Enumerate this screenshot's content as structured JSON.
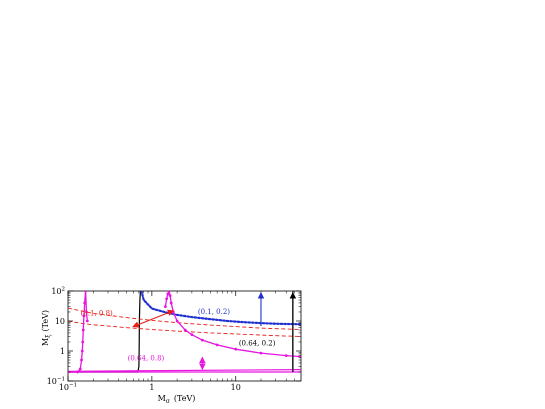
{
  "chart_data": {
    "type": "line",
    "xlabel": "M_σ (TeV)",
    "xlabel_main": "M",
    "xlabel_sub": "σ",
    "xlabel_unit": "(TeV)",
    "ylabel": "M_ξ (TeV)",
    "ylabel_main": "M",
    "ylabel_sub": "ξ",
    "ylabel_unit": "(TeV)",
    "x_scale": "log",
    "y_scale": "log",
    "xlim": [
      0.1,
      60
    ],
    "ylim": [
      0.1,
      100
    ],
    "x_ticks": [
      {
        "value": 0.1,
        "base": "10",
        "exp": "−1"
      },
      {
        "value": 1,
        "label": "1"
      },
      {
        "value": 10,
        "label": "10"
      }
    ],
    "y_ticks": [
      {
        "value": 0.1,
        "base": "10",
        "exp": "−1"
      },
      {
        "value": 1,
        "label": "1"
      },
      {
        "value": 10,
        "label": "10"
      },
      {
        "value": 100,
        "base": "10",
        "exp": "2"
      }
    ],
    "grid": false,
    "colors": {
      "black": "#000000",
      "red": "#e8201a",
      "blue": "#1f2fd0",
      "magenta": "#e815e0"
    },
    "series": [
      {
        "color": "#000000",
        "style": "solid",
        "x": [
          0.1,
          0.6,
          0.68,
          0.7,
          0.705,
          0.71,
          0.72,
          0.73
        ],
        "y": [
          0.2,
          0.2,
          0.2,
          0.3,
          1,
          10,
          50,
          100
        ]
      },
      {
        "color": "#000000",
        "style": "solid",
        "x": [
          48,
          48
        ],
        "y": [
          0.2,
          100
        ]
      },
      {
        "color": "#1f2fd0",
        "style": "dotted",
        "x": [
          0.75,
          0.8,
          1,
          1.5,
          2,
          3,
          5,
          8,
          12,
          20,
          30,
          45,
          60
        ],
        "y": [
          100,
          50,
          26,
          19,
          16,
          13.5,
          11.5,
          10,
          9.2,
          8.5,
          8.1,
          7.9,
          7.8
        ]
      },
      {
        "color": "#e8201a",
        "style": "dashed",
        "x": [
          0.1,
          0.15,
          0.2,
          0.3,
          0.5,
          1,
          2,
          5,
          10,
          20,
          40,
          60
        ],
        "y": [
          27,
          21,
          18,
          15.5,
          13,
          10.5,
          8.8,
          7.3,
          6.5,
          5.8,
          5.4,
          5.2
        ]
      },
      {
        "color": "#e8201a",
        "style": "dashed",
        "x": [
          0.1,
          0.15,
          0.2,
          0.3,
          0.5,
          1,
          2,
          5,
          10,
          20,
          40,
          60
        ],
        "y": [
          10,
          8.2,
          7.5,
          6.8,
          6,
          5.2,
          4.6,
          4,
          3.7,
          3.4,
          3.15,
          3.05
        ]
      },
      {
        "color": "#e815e0",
        "style": "solid-marker",
        "x": [
          0.1,
          0.13,
          0.14,
          0.145,
          0.148,
          0.15,
          0.152,
          0.155,
          0.158,
          0.162,
          0.166,
          0.17
        ],
        "y": [
          0.2,
          0.2,
          0.25,
          0.5,
          1,
          2,
          5,
          15,
          40,
          100,
          20,
          10
        ]
      },
      {
        "color": "#e815e0",
        "style": "solid-marker",
        "x": [
          1.45,
          1.5,
          1.55,
          1.6,
          1.65,
          1.7,
          1.8,
          2,
          2.5,
          3,
          4,
          6,
          10,
          20,
          40,
          60
        ],
        "y": [
          30,
          55,
          80,
          100,
          70,
          40,
          20,
          10,
          5,
          3.5,
          2.3,
          1.6,
          1.15,
          0.85,
          0.7,
          0.65
        ]
      },
      {
        "color": "#e815e0",
        "style": "solid",
        "x": [
          0.1,
          60
        ],
        "y": [
          0.2,
          0.2
        ]
      },
      {
        "color": "#e815e0",
        "style": "solid",
        "x": [
          0.1,
          60
        ],
        "y": [
          0.21,
          0.24
        ]
      }
    ],
    "annotations": [
      {
        "text": "(0.1, 0.8)",
        "color": "#e8201a",
        "x": 0.22,
        "y": 15
      },
      {
        "text": "(0.1, 0.2)",
        "color": "#1f2fd0",
        "x": 5.5,
        "y": 17
      },
      {
        "text": "(0.64, 0.2)",
        "color": "#000000",
        "x": 18,
        "y": 1.5
      },
      {
        "text": "(0.64, 0.8)",
        "color": "#e815e0",
        "x": 0.85,
        "y": 0.48
      }
    ],
    "arrows": [
      {
        "color": "#e8201a",
        "double": true,
        "x1": 0.6,
        "y1": 6.5,
        "x2": 1.8,
        "y2": 22
      },
      {
        "color": "#1f2fd0",
        "double": false,
        "x1": 20,
        "y1": 6.8,
        "x2": 20,
        "y2": 85
      },
      {
        "color": "#000000",
        "double": false,
        "x1": 48,
        "y1": 0.2,
        "x2": 48,
        "y2": 85
      },
      {
        "color": "#e815e0",
        "double": true,
        "x1": 4,
        "y1": 0.25,
        "x2": 4,
        "y2": 0.6
      }
    ]
  }
}
